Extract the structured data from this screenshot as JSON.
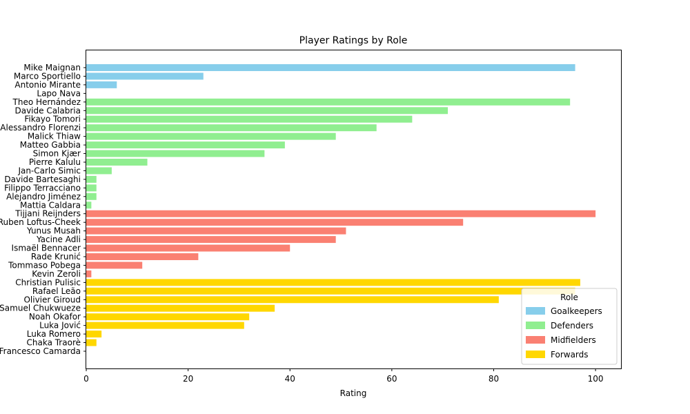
{
  "chart_data": {
    "type": "bar",
    "orientation": "horizontal",
    "title": "Player Ratings by Role",
    "xlabel": "Rating",
    "ylabel": "",
    "xlim": [
      0,
      105
    ],
    "xticks": [
      0,
      20,
      40,
      60,
      80,
      100
    ],
    "grid": false,
    "legend": {
      "title": "Role",
      "placement": "lower-right"
    },
    "groups": [
      {
        "name": "Goalkeepers",
        "color": "#87CEEB"
      },
      {
        "name": "Defenders",
        "color": "#90EE90"
      },
      {
        "name": "Midfielders",
        "color": "#FA8072"
      },
      {
        "name": "Forwards",
        "color": "#FFD700"
      }
    ],
    "bars": [
      {
        "label": "Mike Maignan",
        "value": 96,
        "group": 0
      },
      {
        "label": "Marco Sportiello",
        "value": 23,
        "group": 0
      },
      {
        "label": "Antonio Mirante",
        "value": 6,
        "group": 0
      },
      {
        "label": "Lapo Nava",
        "value": 0,
        "group": 0
      },
      {
        "label": "Theo Hernández",
        "value": 95,
        "group": 1
      },
      {
        "label": "Davide Calabria",
        "value": 71,
        "group": 1
      },
      {
        "label": "Fikayo Tomori",
        "value": 64,
        "group": 1
      },
      {
        "label": "Alessandro Florenzi",
        "value": 57,
        "group": 1
      },
      {
        "label": "Malick Thiaw",
        "value": 49,
        "group": 1
      },
      {
        "label": "Matteo Gabbia",
        "value": 39,
        "group": 1
      },
      {
        "label": "Simon Kjær",
        "value": 35,
        "group": 1
      },
      {
        "label": "Pierre Kalulu",
        "value": 12,
        "group": 1
      },
      {
        "label": "Jan-Carlo Simic",
        "value": 5,
        "group": 1
      },
      {
        "label": "Davide Bartesaghi",
        "value": 2,
        "group": 1
      },
      {
        "label": "Filippo Terracciano",
        "value": 2,
        "group": 1
      },
      {
        "label": "Alejandro Jiménez",
        "value": 2,
        "group": 1
      },
      {
        "label": "Mattia Caldara",
        "value": 1,
        "group": 1
      },
      {
        "label": "Tijjani Reijnders",
        "value": 100,
        "group": 2
      },
      {
        "label": "Ruben Loftus-Cheek",
        "value": 74,
        "group": 2
      },
      {
        "label": "Yunus Musah",
        "value": 51,
        "group": 2
      },
      {
        "label": "Yacine Adli",
        "value": 49,
        "group": 2
      },
      {
        "label": "Ismaël Bennacer",
        "value": 40,
        "group": 2
      },
      {
        "label": "Rade Krunić",
        "value": 22,
        "group": 2
      },
      {
        "label": "Tommaso Pobega",
        "value": 11,
        "group": 2
      },
      {
        "label": "Kevin Zeroli",
        "value": 1,
        "group": 2
      },
      {
        "label": "Christian Pulisic",
        "value": 97,
        "group": 3
      },
      {
        "label": "Rafael Leão",
        "value": 96,
        "group": 3
      },
      {
        "label": "Olivier Giroud",
        "value": 81,
        "group": 3
      },
      {
        "label": "Samuel Chukwueze",
        "value": 37,
        "group": 3
      },
      {
        "label": "Noah Okafor",
        "value": 32,
        "group": 3
      },
      {
        "label": "Luka Jović",
        "value": 31,
        "group": 3
      },
      {
        "label": "Luka Romero",
        "value": 3,
        "group": 3
      },
      {
        "label": "Chaka Traorè",
        "value": 2,
        "group": 3
      },
      {
        "label": "Francesco Camarda",
        "value": 0,
        "group": 3
      }
    ]
  }
}
